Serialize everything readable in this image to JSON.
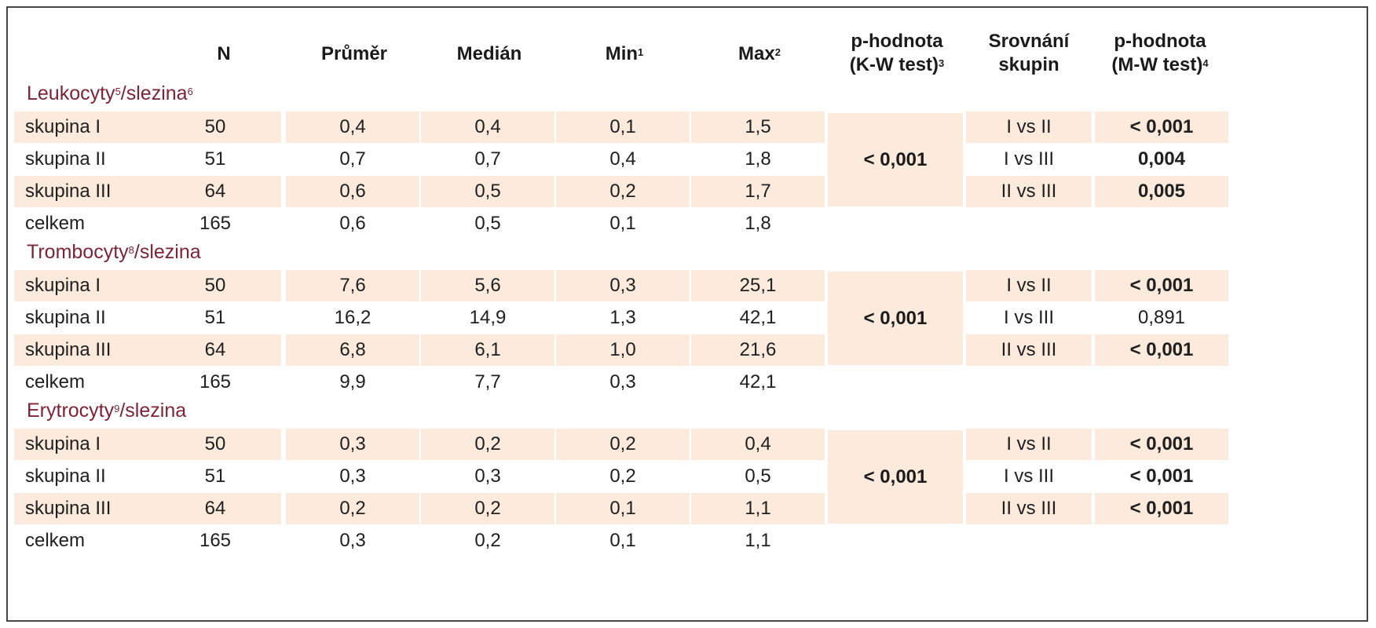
{
  "colors": {
    "border": "#454545",
    "section_title": "#7c2436",
    "row_shade": "#fcebdc",
    "text": "#202020"
  },
  "headers": {
    "n": "N",
    "mean": "Průměr",
    "median": "Medián",
    "min": "Min",
    "min_sup": "1",
    "max": "Max",
    "max_sup": "2",
    "kw_line1": "p-hodnota",
    "kw_line2": "(K-W test)",
    "kw_sup": "3",
    "cmp_line1": "Srovnání",
    "cmp_line2": "skupin",
    "mw_line1": "p-hodnota",
    "mw_line2": "(M-W test)",
    "mw_sup": "4"
  },
  "sections": [
    {
      "title": "Leukocyty",
      "title_sup": "5",
      "title_sep": "/slezina",
      "title_sup2": "6",
      "kw_p": "< 0,001",
      "rows": [
        {
          "group": "skupina I",
          "n": "50",
          "mean": "0,4",
          "median": "0,4",
          "min": "0,1",
          "max": "1,5",
          "cmp": "I vs II",
          "mw": "< 0,001",
          "mw_bold": true
        },
        {
          "group": "skupina II",
          "n": "51",
          "mean": "0,7",
          "median": "0,7",
          "min": "0,4",
          "max": "1,8",
          "cmp": "I vs III",
          "mw": "0,004",
          "mw_bold": true
        },
        {
          "group": "skupina III",
          "n": "64",
          "mean": "0,6",
          "median": "0,5",
          "min": "0,2",
          "max": "1,7",
          "cmp": "II vs III",
          "mw": "0,005",
          "mw_bold": true
        },
        {
          "group": "celkem",
          "n": "165",
          "mean": "0,6",
          "median": "0,5",
          "min": "0,1",
          "max": "1,8",
          "cmp": "",
          "mw": "",
          "mw_bold": false
        }
      ]
    },
    {
      "title": "Trombocyty",
      "title_sup": "8",
      "title_sep": "/slezina",
      "title_sup2": "",
      "kw_p": "< 0,001",
      "rows": [
        {
          "group": "skupina I",
          "n": "50",
          "mean": "7,6",
          "median": "5,6",
          "min": "0,3",
          "max": "25,1",
          "cmp": "I vs II",
          "mw": "< 0,001",
          "mw_bold": true
        },
        {
          "group": "skupina II",
          "n": "51",
          "mean": "16,2",
          "median": "14,9",
          "min": "1,3",
          "max": "42,1",
          "cmp": "I vs III",
          "mw": "0,891",
          "mw_bold": false
        },
        {
          "group": "skupina III",
          "n": "64",
          "mean": "6,8",
          "median": "6,1",
          "min": "1,0",
          "max": "21,6",
          "cmp": "II vs III",
          "mw": "< 0,001",
          "mw_bold": true
        },
        {
          "group": "celkem",
          "n": "165",
          "mean": "9,9",
          "median": "7,7",
          "min": "0,3",
          "max": "42,1",
          "cmp": "",
          "mw": "",
          "mw_bold": false
        }
      ]
    },
    {
      "title": "Erytrocyty",
      "title_sup": "9",
      "title_sep": "/slezina",
      "title_sup2": "",
      "kw_p": "< 0,001",
      "rows": [
        {
          "group": "skupina I",
          "n": "50",
          "mean": "0,3",
          "median": "0,2",
          "min": "0,2",
          "max": "0,4",
          "cmp": "I vs II",
          "mw": "< 0,001",
          "mw_bold": true
        },
        {
          "group": "skupina II",
          "n": "51",
          "mean": "0,3",
          "median": "0,3",
          "min": "0,2",
          "max": "0,5",
          "cmp": "I vs III",
          "mw": "< 0,001",
          "mw_bold": true
        },
        {
          "group": "skupina III",
          "n": "64",
          "mean": "0,2",
          "median": "0,2",
          "min": "0,1",
          "max": "1,1",
          "cmp": "II vs III",
          "mw": "< 0,001",
          "mw_bold": true
        },
        {
          "group": "celkem",
          "n": "165",
          "mean": "0,3",
          "median": "0,2",
          "min": "0,1",
          "max": "1,1",
          "cmp": "",
          "mw": "",
          "mw_bold": false
        }
      ]
    }
  ]
}
